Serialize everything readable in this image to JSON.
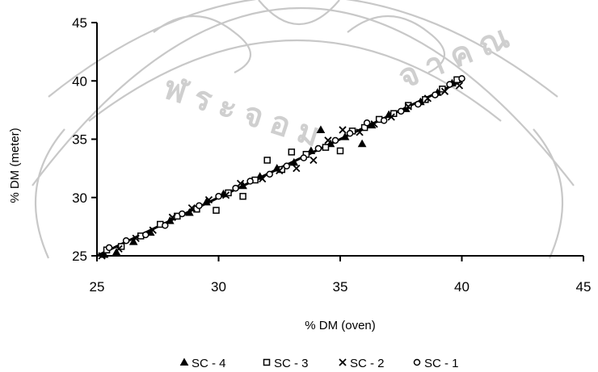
{
  "chart_data": {
    "type": "scatter",
    "title": "",
    "xlabel": "% DM (oven)",
    "ylabel": "% DM (meter)",
    "xlim": [
      25,
      45
    ],
    "ylim": [
      25,
      45
    ],
    "xticks": [
      "25",
      "30",
      "35",
      "40",
      "45"
    ],
    "yticks": [
      "25",
      "30",
      "35",
      "40",
      "45"
    ],
    "grid": false,
    "legend_position": "bottom",
    "series": [
      {
        "name": "SC - 4",
        "marker": "triangle",
        "points": [
          [
            25.3,
            25.1
          ],
          [
            25.8,
            25.3
          ],
          [
            26.5,
            26.2
          ],
          [
            27.2,
            27.0
          ],
          [
            28.0,
            28.0
          ],
          [
            28.8,
            28.7
          ],
          [
            29.5,
            29.6
          ],
          [
            30.2,
            30.3
          ],
          [
            31.0,
            31.0
          ],
          [
            31.7,
            31.8
          ],
          [
            32.4,
            32.5
          ],
          [
            33.1,
            33.0
          ],
          [
            33.8,
            34.0
          ],
          [
            34.2,
            35.8
          ],
          [
            34.6,
            34.6
          ],
          [
            35.2,
            35.2
          ],
          [
            35.9,
            34.6
          ],
          [
            36.3,
            36.2
          ],
          [
            37.0,
            37.1
          ],
          [
            37.7,
            37.6
          ],
          [
            38.3,
            38.2
          ],
          [
            39.0,
            39.0
          ],
          [
            39.6,
            39.8
          ]
        ]
      },
      {
        "name": "SC - 3",
        "marker": "square-open",
        "points": [
          [
            25.4,
            25.5
          ],
          [
            26.0,
            25.8
          ],
          [
            26.8,
            26.7
          ],
          [
            27.6,
            27.7
          ],
          [
            28.3,
            28.4
          ],
          [
            29.1,
            29.0
          ],
          [
            29.9,
            28.9
          ],
          [
            30.4,
            30.4
          ],
          [
            31.0,
            30.1
          ],
          [
            31.5,
            31.5
          ],
          [
            32.0,
            33.2
          ],
          [
            32.6,
            32.4
          ],
          [
            33.0,
            33.9
          ],
          [
            33.6,
            33.7
          ],
          [
            34.4,
            34.3
          ],
          [
            35.0,
            34.0
          ],
          [
            35.5,
            35.7
          ],
          [
            36.0,
            36.0
          ],
          [
            36.6,
            36.7
          ],
          [
            37.2,
            37.2
          ],
          [
            37.8,
            37.9
          ],
          [
            38.5,
            38.4
          ],
          [
            39.2,
            39.3
          ],
          [
            39.8,
            40.1
          ]
        ]
      },
      {
        "name": "SC - 2",
        "marker": "x",
        "points": [
          [
            25.2,
            25.0
          ],
          [
            25.9,
            25.6
          ],
          [
            26.6,
            26.5
          ],
          [
            27.3,
            27.2
          ],
          [
            28.1,
            28.3
          ],
          [
            28.9,
            29.1
          ],
          [
            29.6,
            29.8
          ],
          [
            30.3,
            30.2
          ],
          [
            30.9,
            31.2
          ],
          [
            31.8,
            31.6
          ],
          [
            32.5,
            32.3
          ],
          [
            33.2,
            32.5
          ],
          [
            33.9,
            33.2
          ],
          [
            34.5,
            34.9
          ],
          [
            35.1,
            35.8
          ],
          [
            35.8,
            35.6
          ],
          [
            36.4,
            36.3
          ],
          [
            37.1,
            36.9
          ],
          [
            37.8,
            37.8
          ],
          [
            38.6,
            38.5
          ],
          [
            39.3,
            39.1
          ],
          [
            39.9,
            39.6
          ]
        ]
      },
      {
        "name": "SC - 1",
        "marker": "circle-open",
        "points": [
          [
            25.5,
            25.7
          ],
          [
            26.2,
            26.3
          ],
          [
            27.0,
            26.8
          ],
          [
            27.8,
            27.6
          ],
          [
            28.5,
            28.6
          ],
          [
            29.2,
            29.3
          ],
          [
            30.0,
            30.1
          ],
          [
            30.7,
            30.8
          ],
          [
            31.3,
            31.4
          ],
          [
            32.1,
            32.0
          ],
          [
            32.8,
            32.7
          ],
          [
            33.5,
            33.4
          ],
          [
            34.1,
            34.2
          ],
          [
            34.8,
            34.9
          ],
          [
            35.4,
            35.5
          ],
          [
            36.1,
            36.4
          ],
          [
            36.8,
            36.6
          ],
          [
            37.5,
            37.4
          ],
          [
            38.2,
            38.0
          ],
          [
            38.9,
            38.8
          ],
          [
            39.5,
            39.7
          ],
          [
            40.0,
            40.2
          ]
        ]
      }
    ],
    "trend": {
      "x": [
        25,
        40
      ],
      "y": [
        25,
        40
      ]
    },
    "colors": {
      "ink": "#000000",
      "watermark": "#c8c8c8"
    }
  }
}
